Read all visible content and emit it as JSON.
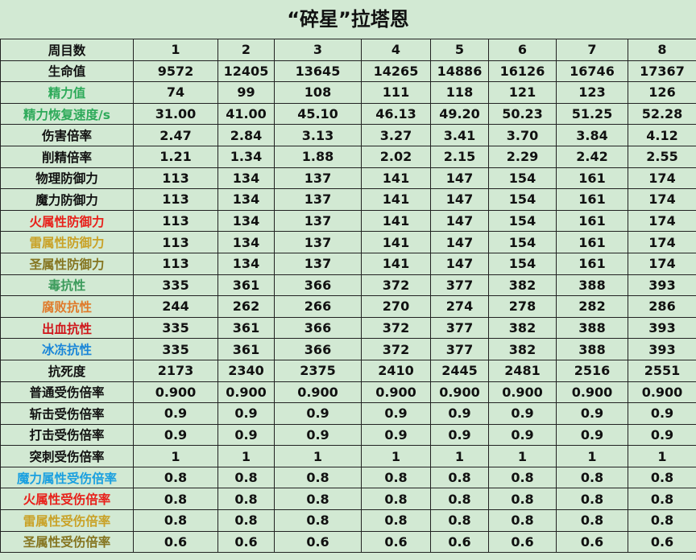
{
  "title": "“碎星”拉塔恩",
  "header": {
    "label": "周目数",
    "values": [
      "1",
      "2",
      "3",
      "4",
      "5",
      "6",
      "7",
      "8"
    ]
  },
  "rows": [
    {
      "label": "生命值",
      "color": "#111111",
      "values": [
        "9572",
        "12405",
        "13645",
        "14265",
        "14886",
        "16126",
        "16746",
        "17367"
      ]
    },
    {
      "label": "精力值",
      "color": "#2eaa5a",
      "values": [
        "74",
        "99",
        "108",
        "111",
        "118",
        "121",
        "123",
        "126"
      ]
    },
    {
      "label": "精力恢复速度/s",
      "color": "#2eaa5a",
      "values": [
        "31.00",
        "41.00",
        "45.10",
        "46.13",
        "49.20",
        "50.23",
        "51.25",
        "52.28"
      ]
    },
    {
      "label": "伤害倍率",
      "color": "#111111",
      "values": [
        "2.47",
        "2.84",
        "3.13",
        "3.27",
        "3.41",
        "3.70",
        "3.84",
        "4.12"
      ]
    },
    {
      "label": "削精倍率",
      "color": "#111111",
      "values": [
        "1.21",
        "1.34",
        "1.88",
        "2.02",
        "2.15",
        "2.29",
        "2.42",
        "2.55"
      ]
    },
    {
      "label": "物理防御力",
      "color": "#111111",
      "values": [
        "113",
        "134",
        "137",
        "141",
        "147",
        "154",
        "161",
        "174"
      ]
    },
    {
      "label": "魔力防御力",
      "color": "#111111",
      "values": [
        "113",
        "134",
        "137",
        "141",
        "147",
        "154",
        "161",
        "174"
      ]
    },
    {
      "label": "火属性防御力",
      "color": "#e8211b",
      "values": [
        "113",
        "134",
        "137",
        "141",
        "147",
        "154",
        "161",
        "174"
      ]
    },
    {
      "label": "雷属性防御力",
      "color": "#c9a227",
      "values": [
        "113",
        "134",
        "137",
        "141",
        "147",
        "154",
        "161",
        "174"
      ]
    },
    {
      "label": "圣属性防御力",
      "color": "#857520",
      "values": [
        "113",
        "134",
        "137",
        "141",
        "147",
        "154",
        "161",
        "174"
      ]
    },
    {
      "label": "毒抗性",
      "color": "#3a9a5a",
      "values": [
        "335",
        "361",
        "366",
        "372",
        "377",
        "382",
        "388",
        "393"
      ]
    },
    {
      "label": "腐败抗性",
      "color": "#e07a2a",
      "values": [
        "244",
        "262",
        "266",
        "270",
        "274",
        "278",
        "282",
        "286"
      ]
    },
    {
      "label": "出血抗性",
      "color": "#d0161b",
      "values": [
        "335",
        "361",
        "366",
        "372",
        "377",
        "382",
        "388",
        "393"
      ]
    },
    {
      "label": "冰冻抗性",
      "color": "#1a86d8",
      "values": [
        "335",
        "361",
        "366",
        "372",
        "377",
        "382",
        "388",
        "393"
      ]
    },
    {
      "label": "抗死度",
      "color": "#111111",
      "values": [
        "2173",
        "2340",
        "2375",
        "2410",
        "2445",
        "2481",
        "2516",
        "2551"
      ]
    },
    {
      "label": "普通受伤倍率",
      "color": "#111111",
      "values": [
        "0.900",
        "0.900",
        "0.900",
        "0.900",
        "0.900",
        "0.900",
        "0.900",
        "0.900"
      ]
    },
    {
      "label": "斩击受伤倍率",
      "color": "#111111",
      "values": [
        "0.9",
        "0.9",
        "0.9",
        "0.9",
        "0.9",
        "0.9",
        "0.9",
        "0.9"
      ]
    },
    {
      "label": "打击受伤倍率",
      "color": "#111111",
      "values": [
        "0.9",
        "0.9",
        "0.9",
        "0.9",
        "0.9",
        "0.9",
        "0.9",
        "0.9"
      ]
    },
    {
      "label": "突刺受伤倍率",
      "color": "#111111",
      "values": [
        "1",
        "1",
        "1",
        "1",
        "1",
        "1",
        "1",
        "1"
      ]
    },
    {
      "label": "魔力属性受伤倍率",
      "color": "#1aa0e0",
      "values": [
        "0.8",
        "0.8",
        "0.8",
        "0.8",
        "0.8",
        "0.8",
        "0.8",
        "0.8"
      ]
    },
    {
      "label": "火属性受伤倍率",
      "color": "#e8211b",
      "values": [
        "0.8",
        "0.8",
        "0.8",
        "0.8",
        "0.8",
        "0.8",
        "0.8",
        "0.8"
      ]
    },
    {
      "label": "雷属性受伤倍率",
      "color": "#c9a227",
      "values": [
        "0.8",
        "0.8",
        "0.8",
        "0.8",
        "0.8",
        "0.8",
        "0.8",
        "0.8"
      ]
    },
    {
      "label": "圣属性受伤倍率",
      "color": "#857520",
      "values": [
        "0.6",
        "0.6",
        "0.6",
        "0.6",
        "0.6",
        "0.6",
        "0.6",
        "0.6"
      ]
    }
  ]
}
